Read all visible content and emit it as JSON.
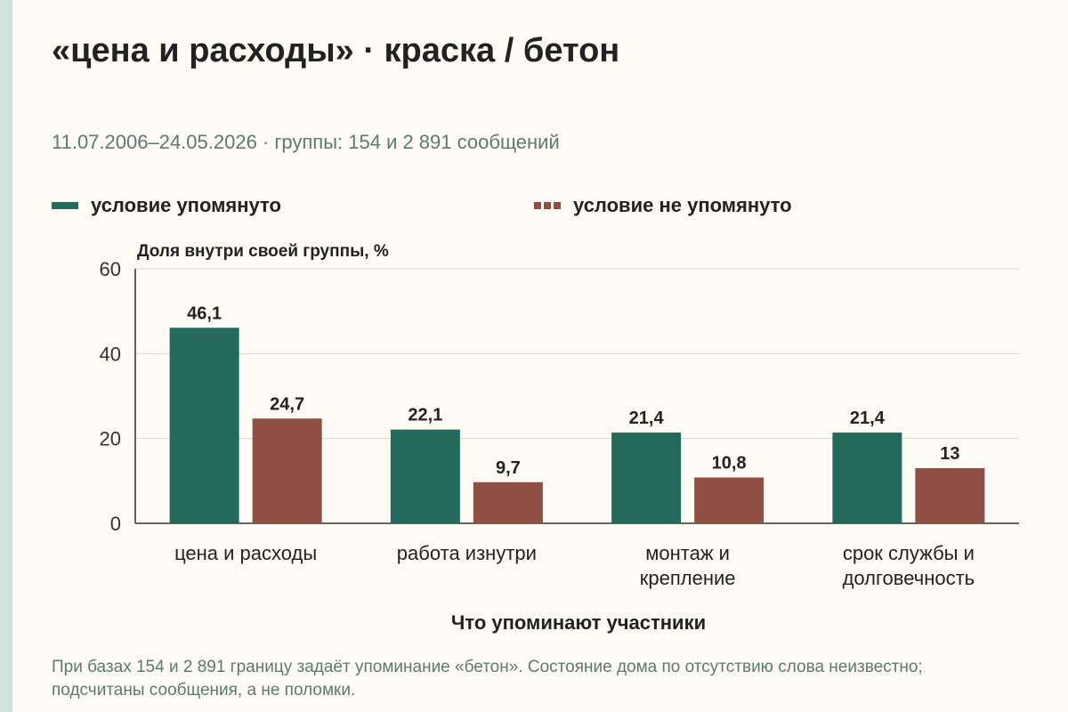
{
  "title": "«цена и расходы» · краска / бетон",
  "subtitle": "11.07.2006–24.05.2026 · группы: 154 и 2 891 сообщений",
  "note": "При базах 154 и 2 891 границу задаёт упоминание «бетон». Состояние дома по отсутствию слова неизвестно; подсчитаны сообщения, а не поломки.",
  "colors": {
    "mentioned": "#246a5a",
    "not_mentioned": "#8f4f44",
    "grid": "#d9d9d4",
    "axis": "#333333"
  },
  "chart_data": {
    "type": "bar",
    "ylabel": "Доля внутри своей группы, %",
    "xlabel": "Что упоминают участники",
    "ylim": [
      0,
      60
    ],
    "yticks": [
      0,
      20,
      40,
      60
    ],
    "grid": true,
    "legend_position": "top",
    "categories": [
      [
        "цена и расходы"
      ],
      [
        "работа изнутри"
      ],
      [
        "монтаж и",
        "крепление"
      ],
      [
        "срок службы и",
        "долговечность"
      ]
    ],
    "series": [
      {
        "name": "условие упомянуто",
        "values": [
          46.1,
          22.1,
          21.4,
          21.4
        ],
        "labels": [
          "46,1",
          "22,1",
          "21,4",
          "21,4"
        ]
      },
      {
        "name": "условие не упомянуто",
        "values": [
          24.7,
          9.7,
          10.8,
          13
        ],
        "labels": [
          "24,7",
          "9,7",
          "10,8",
          "13"
        ]
      }
    ]
  }
}
